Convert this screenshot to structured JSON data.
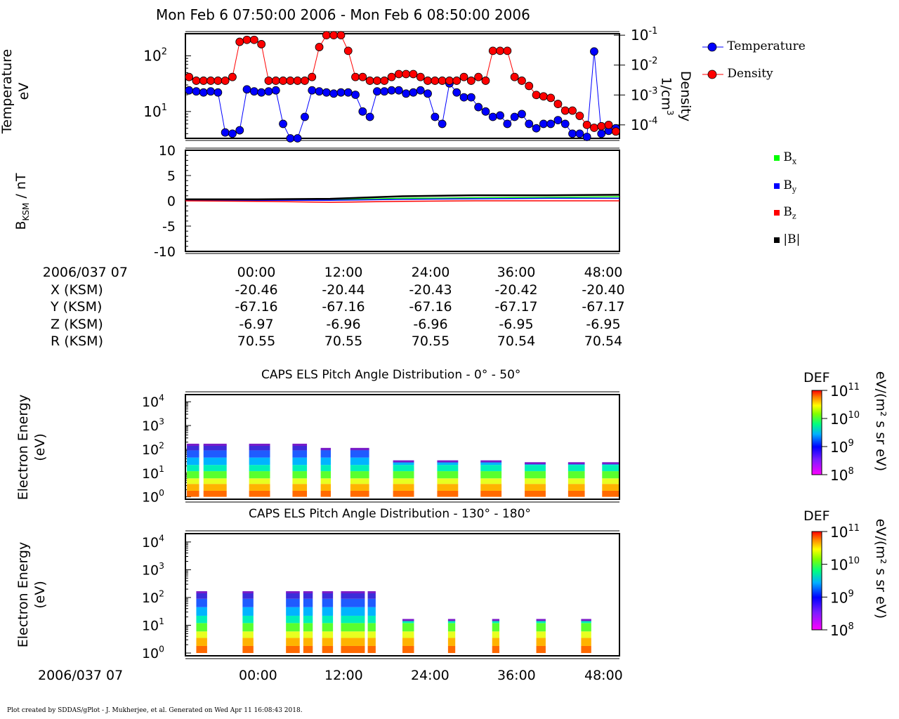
{
  "title": "Mon Feb 6 07:50:00 2006 - Mon Feb 6 08:50:00 2006",
  "footer": "Plot created by SDDAS/gPlot - J. Mukherjee, et al.  Generated on Wed Apr 11 16:08:43 2018.",
  "panel1": {
    "ylabel_line1": "Temperature",
    "ylabel_line2": "eV",
    "right_label_line1": "Density",
    "right_label_line2": "1/cm",
    "right_label_sup": "3",
    "legend": [
      {
        "name": "Temperature",
        "color": "#0000ff"
      },
      {
        "name": "Density",
        "color": "#ff0000"
      }
    ]
  },
  "panel2": {
    "ylabel_main": "B",
    "ylabel_sub": "KSM",
    "ylabel_rest": " / nT",
    "legend": [
      {
        "name": "B",
        "sub": "x",
        "color": "#00ff00"
      },
      {
        "name": "B",
        "sub": "y",
        "color": "#0000ff"
      },
      {
        "name": "B",
        "sub": "z",
        "color": "#ff0000"
      },
      {
        "name": "|B|",
        "sub": "",
        "color": "#000000"
      }
    ]
  },
  "ephemeris": {
    "row_labels": [
      "2006/037 07",
      "X (KSM)",
      "Y (KSM)",
      "Z (KSM)",
      "R (KSM)"
    ],
    "columns": [
      [
        "00:00",
        "-20.46",
        "-67.16",
        "-6.97",
        "70.55"
      ],
      [
        "12:00",
        "-20.44",
        "-67.16",
        "-6.96",
        "70.55"
      ],
      [
        "24:00",
        "-20.43",
        "-67.16",
        "-6.96",
        "70.55"
      ],
      [
        "36:00",
        "-20.42",
        "-67.17",
        "-6.95",
        "70.54"
      ],
      [
        "48:00",
        "-20.40",
        "-67.17",
        "-6.95",
        "70.54"
      ]
    ]
  },
  "spec1": {
    "title": "CAPS ELS Pitch Angle Distribution - 0° - 50°",
    "ylabel_line1": "Electron Energy",
    "ylabel_line2": "(eV)",
    "cbar_title": "DEF",
    "cbar_units": "eV/(m² s sr eV)"
  },
  "spec2": {
    "title": "CAPS ELS Pitch Angle Distribution - 130° - 180°",
    "ylabel_line1": "Electron Energy",
    "ylabel_line2": "(eV)",
    "cbar_title": "DEF",
    "cbar_units": "eV/(m² s sr eV)"
  },
  "bottom_axis": {
    "date_label": "2006/037 07",
    "ticks": [
      "00:00",
      "12:00",
      "24:00",
      "36:00",
      "48:00"
    ]
  },
  "chart_data": [
    {
      "type": "line",
      "name": "temperature-density",
      "x_unit": "minutes after 07:50",
      "xlim": [
        0,
        60
      ],
      "left_axis": {
        "label": "Temperature eV",
        "scale": "log",
        "ticks": [
          "10^1",
          "10^2"
        ]
      },
      "right_axis": {
        "label": "Density 1/cm^3",
        "scale": "log",
        "ticks": [
          "10^-4",
          "10^-3",
          "10^-2",
          "10^-1"
        ]
      },
      "series": [
        {
          "name": "Temperature",
          "color": "#0000ff",
          "axis": "left",
          "x": [
            0.5,
            1.5,
            2.5,
            3.5,
            4.5,
            5.5,
            6.5,
            7.5,
            8.5,
            9.5,
            10.5,
            11.5,
            12.5,
            13.5,
            14.5,
            15.5,
            16.5,
            17.5,
            18.5,
            19.5,
            20.5,
            21.5,
            22.5,
            23.5,
            24.5,
            25.5,
            26.5,
            27.5,
            28.5,
            29.5,
            30.5,
            31.5,
            32.5,
            33.5,
            34.5,
            35.5,
            36.5,
            37.5,
            38.5,
            39.5,
            40.5,
            41.5,
            42.5,
            43.5,
            44.5,
            45.5,
            46.5,
            47.5,
            48.5,
            49.5,
            50.5,
            51.5,
            52.5,
            53.5,
            54.5,
            55.5,
            56.5,
            57.5,
            58.5,
            59.5
          ],
          "y": [
            24,
            23,
            22,
            23,
            22,
            4.2,
            4.0,
            4.6,
            25,
            23,
            22,
            23,
            24,
            6,
            3,
            2.5,
            8,
            24,
            23,
            22,
            21,
            22,
            22,
            20,
            10,
            8,
            23,
            23,
            24,
            24,
            21,
            22,
            24,
            21,
            8,
            6,
            32,
            22,
            18,
            18,
            12,
            10,
            8,
            8.5,
            6,
            8,
            9,
            6,
            5,
            6,
            6,
            7,
            6,
            4,
            4,
            3.5,
            120,
            4,
            4.5,
            5
          ]
        },
        {
          "name": "Density",
          "color": "#ff0000",
          "axis": "right",
          "x": [
            0.5,
            1.5,
            2.5,
            3.5,
            4.5,
            5.5,
            6.5,
            7.5,
            8.5,
            9.5,
            10.5,
            11.5,
            12.5,
            13.5,
            14.5,
            15.5,
            16.5,
            17.5,
            18.5,
            19.5,
            20.5,
            21.5,
            22.5,
            23.5,
            24.5,
            25.5,
            26.5,
            27.5,
            28.5,
            29.5,
            30.5,
            31.5,
            32.5,
            33.5,
            34.5,
            35.5,
            36.5,
            37.5,
            38.5,
            39.5,
            40.5,
            41.5,
            42.5,
            43.5,
            44.5,
            45.5,
            46.5,
            47.5,
            48.5,
            49.5,
            50.5,
            51.5,
            52.5,
            53.5,
            54.5,
            55.5,
            56.5,
            57.5,
            58.5,
            59.5
          ],
          "y": [
            0.004,
            0.003,
            0.003,
            0.003,
            0.003,
            0.003,
            0.004,
            0.06,
            0.07,
            0.07,
            0.05,
            0.003,
            0.003,
            0.003,
            0.003,
            0.003,
            0.003,
            0.004,
            0.04,
            0.1,
            0.1,
            0.1,
            0.03,
            0.004,
            0.004,
            0.003,
            0.003,
            0.003,
            0.004,
            0.005,
            0.005,
            0.005,
            0.004,
            0.003,
            0.003,
            0.003,
            0.003,
            0.003,
            0.004,
            0.003,
            0.004,
            0.003,
            0.03,
            0.03,
            0.03,
            0.004,
            0.003,
            0.002,
            0.001,
            0.0009,
            0.0008,
            0.0005,
            0.0003,
            0.0003,
            0.0002,
            0.0001,
            8e-05,
            9e-05,
            0.0001,
            6e-05
          ]
        }
      ]
    },
    {
      "type": "line",
      "name": "magnetic-field",
      "ylabel": "BKSM / nT",
      "ylim": [
        -10,
        10
      ],
      "yticks": [
        10,
        5,
        0,
        -5,
        -10
      ],
      "x_unit": "minutes after 07:50",
      "xlim": [
        0,
        60
      ],
      "series": [
        {
          "name": "Bx",
          "color": "#00ff00",
          "x": [
            0,
            10,
            20,
            30,
            40,
            50,
            60
          ],
          "y": [
            0.1,
            0.1,
            0.2,
            0.5,
            0.6,
            0.7,
            0.8
          ]
        },
        {
          "name": "By",
          "color": "#0000ff",
          "x": [
            0,
            10,
            20,
            30,
            40,
            50,
            60
          ],
          "y": [
            0.1,
            0.1,
            0.1,
            0.3,
            0.4,
            0.5,
            0.5
          ]
        },
        {
          "name": "Bz",
          "color": "#ff0000",
          "x": [
            0,
            10,
            20,
            30,
            40,
            50,
            60
          ],
          "y": [
            0.0,
            -0.1,
            -0.3,
            -0.1,
            0.0,
            0.0,
            0.0
          ]
        },
        {
          "name": "|B|",
          "color": "#000000",
          "x": [
            0,
            10,
            20,
            30,
            40,
            50,
            60
          ],
          "y": [
            0.3,
            0.3,
            0.4,
            0.9,
            1.1,
            1.1,
            1.2
          ]
        }
      ]
    },
    {
      "type": "heatmap",
      "name": "pitch-angle-0-50",
      "ylabel": "Electron Energy (eV)",
      "yscale": "log",
      "yticks": [
        "10^0",
        "10^1",
        "10^2",
        "10^3",
        "10^4"
      ],
      "colorbar": {
        "label": "DEF",
        "units": "eV/(m² s sr eV)",
        "ticks": [
          "10^8",
          "10^9",
          "10^10",
          "10^11"
        ]
      },
      "x_unit": "minutes after 07:50",
      "xlim": [
        0,
        60
      ],
      "blocks": [
        {
          "x0": 0.2,
          "x1": 1.9,
          "emax": 150
        },
        {
          "x0": 2.5,
          "x1": 5.7,
          "emax": 150
        },
        {
          "x0": 8.8,
          "x1": 11.7,
          "emax": 150
        },
        {
          "x0": 14.8,
          "x1": 16.8,
          "emax": 150
        },
        {
          "x0": 18.7,
          "x1": 20.1,
          "emax": 100
        },
        {
          "x0": 22.8,
          "x1": 25.4,
          "emax": 100
        },
        {
          "x0": 28.7,
          "x1": 31.6,
          "emax": 30
        },
        {
          "x0": 34.8,
          "x1": 37.7,
          "emax": 30
        },
        {
          "x0": 40.8,
          "x1": 43.7,
          "emax": 30
        },
        {
          "x0": 46.9,
          "x1": 49.8,
          "emax": 25
        },
        {
          "x0": 52.9,
          "x1": 55.2,
          "emax": 25
        },
        {
          "x0": 57.6,
          "x1": 59.9,
          "emax": 25
        }
      ]
    },
    {
      "type": "heatmap",
      "name": "pitch-angle-130-180",
      "ylabel": "Electron Energy (eV)",
      "yscale": "log",
      "yticks": [
        "10^0",
        "10^1",
        "10^2",
        "10^3",
        "10^4"
      ],
      "colorbar": {
        "label": "DEF",
        "units": "eV/(m² s sr eV)",
        "ticks": [
          "10^8",
          "10^9",
          "10^10",
          "10^11"
        ]
      },
      "x_unit": "minutes after 07:50",
      "xlim": [
        0,
        60
      ],
      "blocks": [
        {
          "x0": 1.5,
          "x1": 3.0,
          "emax": 150
        },
        {
          "x0": 7.9,
          "x1": 9.4,
          "emax": 150
        },
        {
          "x0": 13.9,
          "x1": 15.8,
          "emax": 150
        },
        {
          "x0": 16.3,
          "x1": 17.6,
          "emax": 150
        },
        {
          "x0": 18.9,
          "x1": 20.4,
          "emax": 150
        },
        {
          "x0": 21.5,
          "x1": 24.8,
          "emax": 150
        },
        {
          "x0": 25.2,
          "x1": 26.3,
          "emax": 150
        },
        {
          "x0": 30.0,
          "x1": 31.6,
          "emax": 15
        },
        {
          "x0": 36.3,
          "x1": 37.3,
          "emax": 15
        },
        {
          "x0": 42.4,
          "x1": 43.4,
          "emax": 15
        },
        {
          "x0": 48.5,
          "x1": 49.8,
          "emax": 15
        },
        {
          "x0": 54.7,
          "x1": 56.1,
          "emax": 15
        }
      ]
    }
  ]
}
